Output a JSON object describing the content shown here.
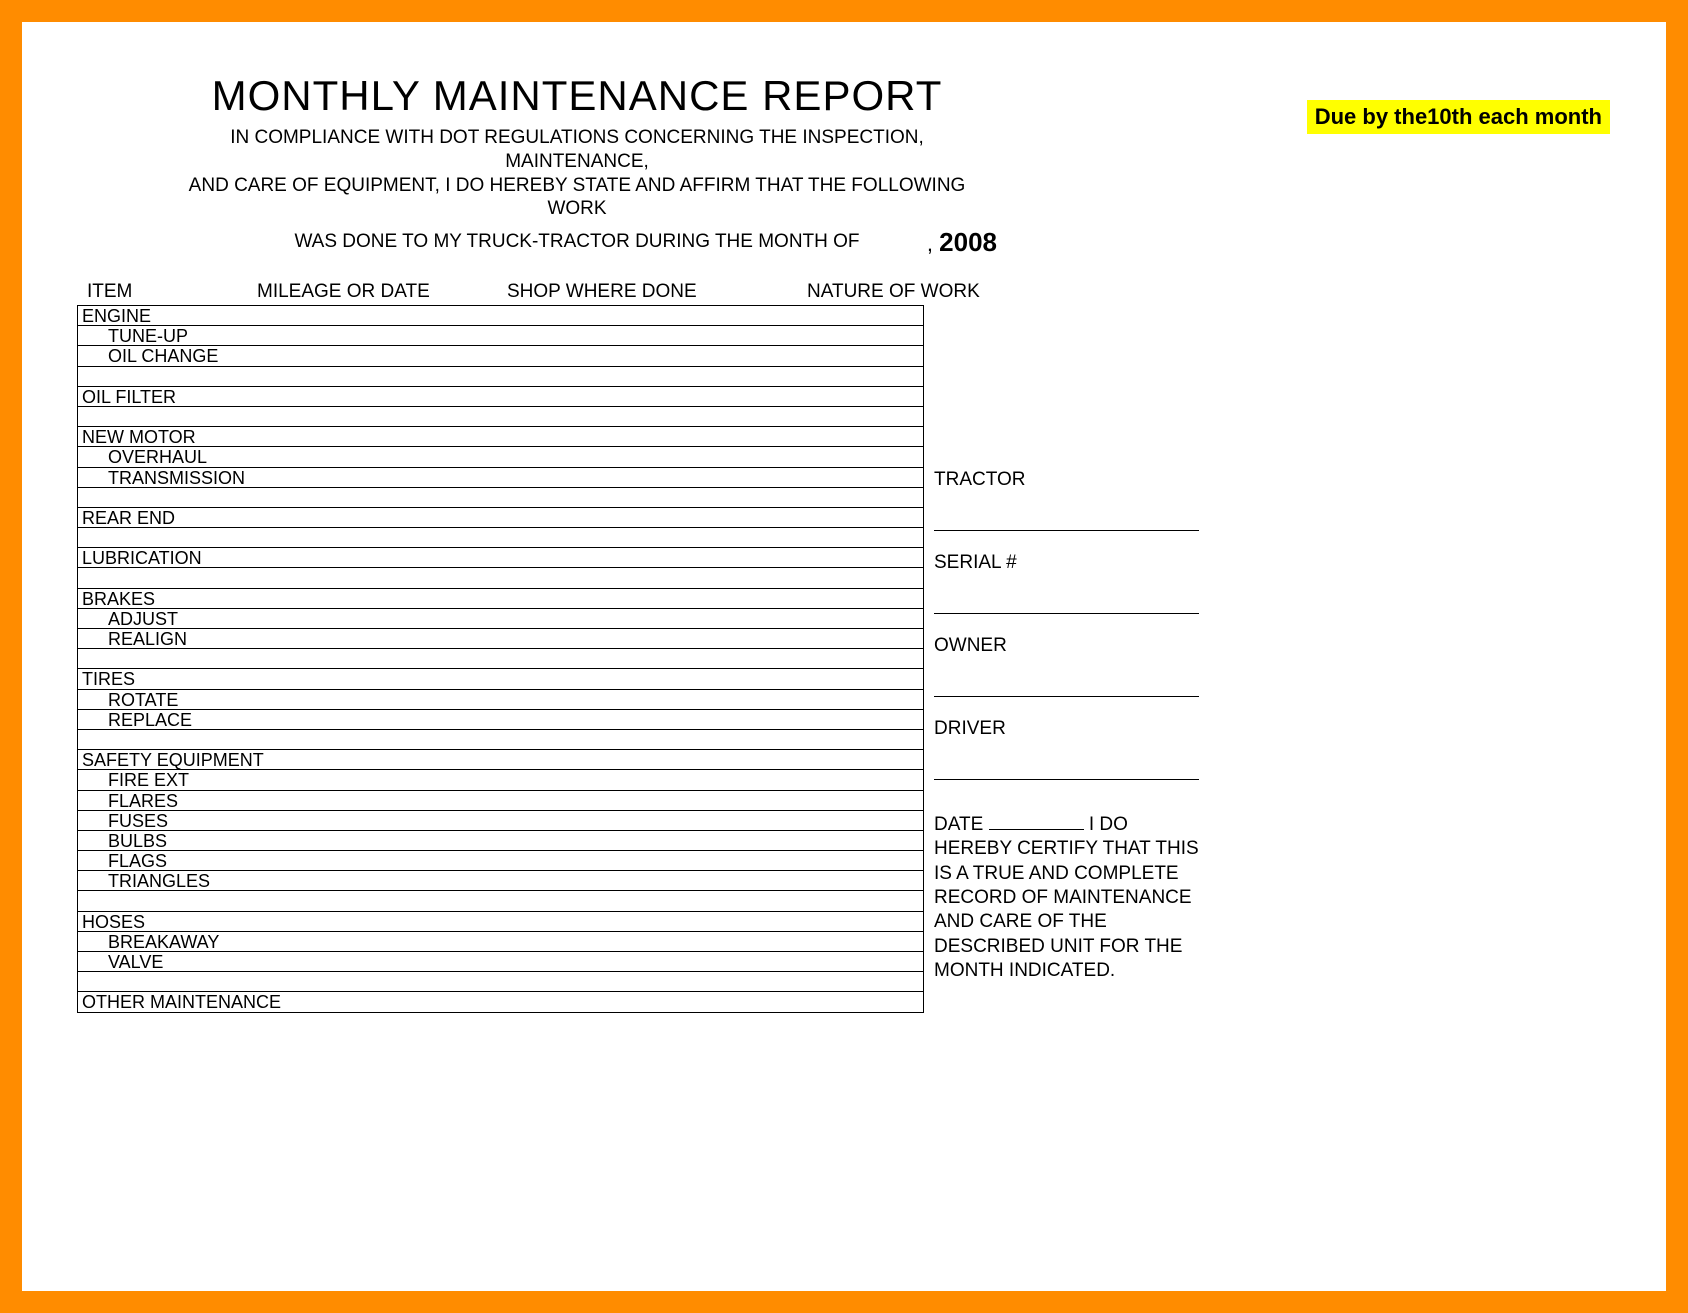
{
  "colors": {
    "border": "#ff8c00",
    "highlight": "#ffff00",
    "text": "#000000",
    "background": "#ffffff"
  },
  "badge": "Due by the10th each month",
  "header": {
    "title": "MONTHLY MAINTENANCE REPORT",
    "sub1": "IN COMPLIANCE WITH DOT REGULATIONS CONCERNING THE INSPECTION, MAINTENANCE,",
    "sub2": "AND CARE OF EQUIPMENT, I DO HEREBY STATE AND AFFIRM THAT THE FOLLOWING WORK",
    "sub3": "WAS DONE TO MY TRUCK-TRACTOR DURING THE MONTH OF",
    "year": "2008"
  },
  "columns": {
    "c1": "ITEM",
    "c2": "MILEAGE OR DATE",
    "c3": "SHOP WHERE DONE",
    "c4": "NATURE OF WORK"
  },
  "rows": [
    {
      "t": "ENGINE",
      "s": 0
    },
    {
      "t": "TUNE-UP",
      "s": 1
    },
    {
      "t": "OIL CHANGE",
      "s": 1
    },
    {
      "t": "",
      "s": 0
    },
    {
      "t": "OIL FILTER",
      "s": 0
    },
    {
      "t": "",
      "s": 0
    },
    {
      "t": "NEW MOTOR",
      "s": 0
    },
    {
      "t": "OVERHAUL",
      "s": 1
    },
    {
      "t": "TRANSMISSION",
      "s": 1
    },
    {
      "t": "",
      "s": 0
    },
    {
      "t": "REAR END",
      "s": 0
    },
    {
      "t": "",
      "s": 0
    },
    {
      "t": "LUBRICATION",
      "s": 0
    },
    {
      "t": "",
      "s": 0
    },
    {
      "t": "BRAKES",
      "s": 0
    },
    {
      "t": "ADJUST",
      "s": 1
    },
    {
      "t": "REALIGN",
      "s": 1
    },
    {
      "t": "",
      "s": 0
    },
    {
      "t": "TIRES",
      "s": 0
    },
    {
      "t": "ROTATE",
      "s": 1
    },
    {
      "t": "REPLACE",
      "s": 1
    },
    {
      "t": "",
      "s": 0
    },
    {
      "t": "SAFETY EQUIPMENT",
      "s": 0
    },
    {
      "t": "FIRE EXT",
      "s": 1
    },
    {
      "t": "FLARES",
      "s": 1
    },
    {
      "t": "FUSES",
      "s": 1
    },
    {
      "t": "BULBS",
      "s": 1
    },
    {
      "t": "FLAGS",
      "s": 1
    },
    {
      "t": "TRIANGLES",
      "s": 1
    },
    {
      "t": "",
      "s": 0
    },
    {
      "t": "HOSES",
      "s": 0
    },
    {
      "t": "BREAKAWAY",
      "s": 1
    },
    {
      "t": "VALVE",
      "s": 1
    },
    {
      "t": "",
      "s": 0
    },
    {
      "t": "OTHER MAINTENANCE",
      "s": 0
    }
  ],
  "side": {
    "tractor": "TRACTOR",
    "serial": "SERIAL #",
    "owner": "OWNER",
    "driver": "DRIVER",
    "cert_date_prefix": "DATE",
    "cert_text": "I DO HEREBY CERTIFY THAT THIS IS A TRUE AND COMPLETE RECORD OF MAINTENANCE AND CARE OF THE DESCRIBED UNIT FOR THE MONTH INDICATED."
  }
}
